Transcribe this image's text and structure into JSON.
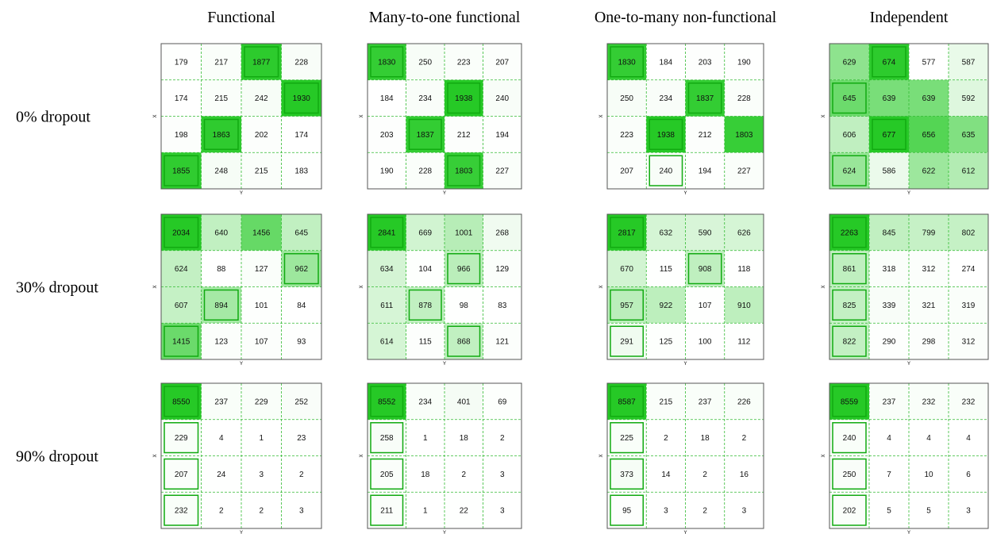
{
  "column_titles": [
    "Functional",
    "Many-to-one functional",
    "One-to-many non-functional",
    "Independent"
  ],
  "row_labels": [
    "0% dropout",
    "30% dropout",
    "90% dropout"
  ],
  "x_label": "X",
  "y_label": "Y",
  "color": "#00c000",
  "panels": [
    {
      "values": [
        [
          179,
          217,
          1877,
          228
        ],
        [
          174,
          215,
          242,
          1930
        ],
        [
          198,
          1863,
          202,
          174
        ],
        [
          1855,
          248,
          215,
          183
        ]
      ],
      "boxed": [
        [
          0,
          2
        ],
        [
          1,
          3
        ],
        [
          2,
          1
        ],
        [
          3,
          0
        ]
      ]
    },
    {
      "values": [
        [
          1830,
          250,
          223,
          207
        ],
        [
          184,
          234,
          1938,
          240
        ],
        [
          203,
          1837,
          212,
          194
        ],
        [
          190,
          228,
          1803,
          227
        ]
      ],
      "boxed": [
        [
          0,
          0
        ],
        [
          1,
          2
        ],
        [
          2,
          1
        ],
        [
          3,
          2
        ]
      ]
    },
    {
      "values": [
        [
          1830,
          184,
          203,
          190
        ],
        [
          250,
          234,
          1837,
          228
        ],
        [
          223,
          1938,
          212,
          1803
        ],
        [
          207,
          240,
          194,
          227
        ]
      ],
      "boxed": [
        [
          0,
          0
        ],
        [
          1,
          2
        ],
        [
          2,
          1
        ],
        [
          3,
          1
        ]
      ]
    },
    {
      "values": [
        [
          629,
          674,
          577,
          587
        ],
        [
          645,
          639,
          639,
          592
        ],
        [
          606,
          677,
          656,
          635
        ],
        [
          624,
          586,
          622,
          612
        ]
      ],
      "boxed": [
        [
          0,
          1
        ],
        [
          1,
          0
        ],
        [
          2,
          1
        ],
        [
          3,
          0
        ]
      ]
    },
    {
      "values": [
        [
          2034,
          640,
          1456,
          645
        ],
        [
          624,
          88,
          127,
          962
        ],
        [
          607,
          894,
          101,
          84
        ],
        [
          1415,
          123,
          107,
          93
        ]
      ],
      "boxed": [
        [
          0,
          0
        ],
        [
          1,
          3
        ],
        [
          2,
          1
        ],
        [
          3,
          0
        ]
      ]
    },
    {
      "values": [
        [
          2841,
          669,
          1001,
          268
        ],
        [
          634,
          104,
          966,
          129
        ],
        [
          611,
          878,
          98,
          83
        ],
        [
          614,
          115,
          868,
          121
        ]
      ],
      "boxed": [
        [
          0,
          0
        ],
        [
          1,
          2
        ],
        [
          2,
          1
        ],
        [
          3,
          2
        ]
      ]
    },
    {
      "values": [
        [
          2817,
          632,
          590,
          626
        ],
        [
          670,
          115,
          908,
          118
        ],
        [
          957,
          922,
          107,
          910
        ],
        [
          291,
          125,
          100,
          112
        ]
      ],
      "boxed": [
        [
          0,
          0
        ],
        [
          1,
          2
        ],
        [
          2,
          0
        ],
        [
          3,
          0
        ]
      ]
    },
    {
      "values": [
        [
          2263,
          845,
          799,
          802
        ],
        [
          861,
          318,
          312,
          274
        ],
        [
          825,
          339,
          321,
          319
        ],
        [
          822,
          290,
          298,
          312
        ]
      ],
      "boxed": [
        [
          0,
          0
        ],
        [
          1,
          0
        ],
        [
          2,
          0
        ],
        [
          3,
          0
        ]
      ]
    },
    {
      "values": [
        [
          8550,
          237,
          229,
          252
        ],
        [
          229,
          4,
          1,
          23
        ],
        [
          207,
          24,
          3,
          2
        ],
        [
          232,
          2,
          2,
          3
        ]
      ],
      "boxed": [
        [
          0,
          0
        ],
        [
          1,
          0
        ],
        [
          2,
          0
        ],
        [
          3,
          0
        ]
      ]
    },
    {
      "values": [
        [
          8552,
          234,
          401,
          69
        ],
        [
          258,
          1,
          18,
          2
        ],
        [
          205,
          18,
          2,
          3
        ],
        [
          211,
          1,
          22,
          3
        ]
      ],
      "boxed": [
        [
          0,
          0
        ],
        [
          1,
          0
        ],
        [
          2,
          0
        ],
        [
          3,
          0
        ]
      ]
    },
    {
      "values": [
        [
          8587,
          215,
          237,
          226
        ],
        [
          225,
          2,
          18,
          2
        ],
        [
          373,
          14,
          2,
          16
        ],
        [
          95,
          3,
          2,
          3
        ]
      ],
      "boxed": [
        [
          0,
          0
        ],
        [
          1,
          0
        ],
        [
          2,
          0
        ],
        [
          3,
          0
        ]
      ]
    },
    {
      "values": [
        [
          8559,
          237,
          232,
          232
        ],
        [
          240,
          4,
          4,
          4
        ],
        [
          250,
          7,
          10,
          6
        ],
        [
          202,
          5,
          5,
          3
        ]
      ],
      "boxed": [
        [
          0,
          0
        ],
        [
          1,
          0
        ],
        [
          2,
          0
        ],
        [
          3,
          0
        ]
      ]
    }
  ]
}
